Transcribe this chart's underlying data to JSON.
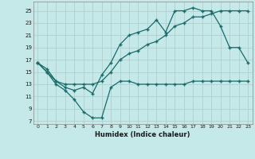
{
  "xlabel": "Humidex (Indice chaleur)",
  "bg_color": "#c5e8e8",
  "line_color": "#1a6b6b",
  "grid_color": "#b0d0d0",
  "xlim": [
    -0.5,
    23.5
  ],
  "ylim": [
    6.5,
    26.5
  ],
  "yticks": [
    7,
    9,
    11,
    13,
    15,
    17,
    19,
    21,
    23,
    25
  ],
  "xticks": [
    0,
    1,
    2,
    3,
    4,
    5,
    6,
    7,
    8,
    9,
    10,
    11,
    12,
    13,
    14,
    15,
    16,
    17,
    18,
    19,
    20,
    21,
    22,
    23
  ],
  "line1_x": [
    0,
    1,
    2,
    3,
    4,
    5,
    6,
    7,
    8,
    9,
    10,
    11,
    12,
    13,
    14,
    15,
    16,
    17,
    18,
    19,
    20,
    21,
    22,
    23
  ],
  "line1_y": [
    16.5,
    15.0,
    13.0,
    12.0,
    10.5,
    8.5,
    7.5,
    7.5,
    12.5,
    13.5,
    13.5,
    13.0,
    13.0,
    13.0,
    13.0,
    13.0,
    13.0,
    13.5,
    13.5,
    13.5,
    13.5,
    13.5,
    13.5,
    13.5
  ],
  "line2_x": [
    0,
    1,
    2,
    3,
    4,
    5,
    6,
    7,
    8,
    9,
    10,
    11,
    12,
    13,
    14,
    15,
    16,
    17,
    18,
    19,
    20,
    21,
    22,
    23
  ],
  "line2_y": [
    16.5,
    15.0,
    13.5,
    12.5,
    12.0,
    12.5,
    11.5,
    14.5,
    16.5,
    19.5,
    21.0,
    21.5,
    22.0,
    23.5,
    21.5,
    25.0,
    25.0,
    25.5,
    25.0,
    25.0,
    22.5,
    19.0,
    19.0,
    16.5
  ],
  "line3_x": [
    0,
    1,
    2,
    3,
    4,
    5,
    6,
    7,
    8,
    9,
    10,
    11,
    12,
    13,
    14,
    15,
    16,
    17,
    18,
    19,
    20,
    21,
    22,
    23
  ],
  "line3_y": [
    16.5,
    15.5,
    13.5,
    13.0,
    13.0,
    13.0,
    13.0,
    13.5,
    15.0,
    17.0,
    18.0,
    18.5,
    19.5,
    20.0,
    21.0,
    22.5,
    23.0,
    24.0,
    24.0,
    24.5,
    25.0,
    25.0,
    25.0,
    25.0
  ]
}
